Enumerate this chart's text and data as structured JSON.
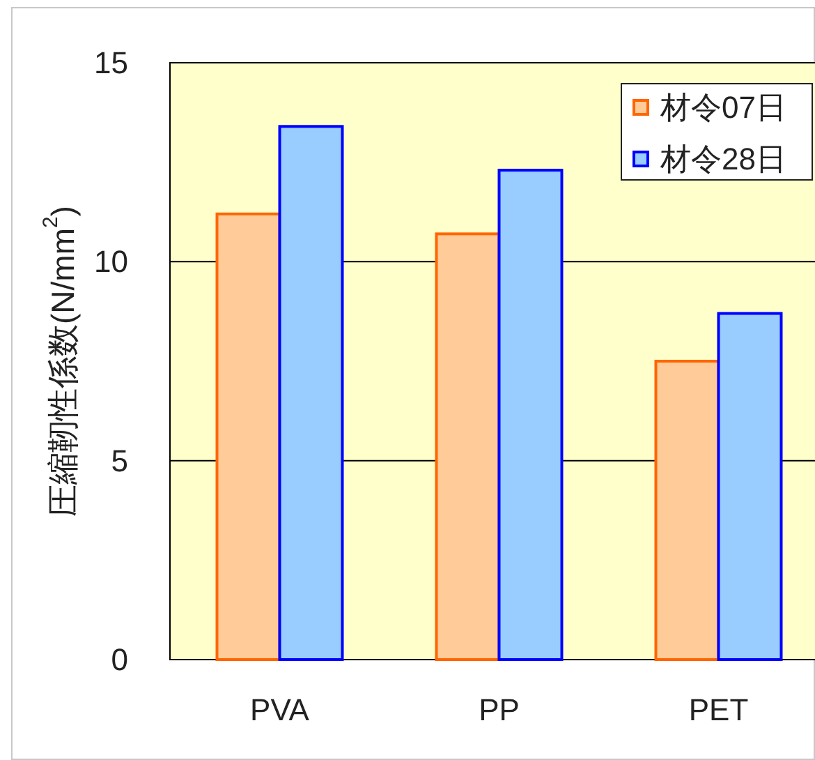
{
  "chart_data": {
    "type": "bar",
    "ylabel": "圧縮靭性係数(N/mm$^{2}$)",
    "categories": [
      "PVA",
      "PP",
      "PET"
    ],
    "series": [
      {
        "name": "材令07日",
        "color": "#ffcc99",
        "values": [
          11.2,
          10.7,
          7.5
        ]
      },
      {
        "name": "材令28日",
        "color": "#99ccff",
        "values": [
          13.4,
          12.3,
          8.7
        ]
      }
    ],
    "ylim": [
      0,
      15
    ],
    "yticks": [
      0,
      5,
      10,
      15
    ],
    "grid": "y",
    "legend": "top right"
  }
}
